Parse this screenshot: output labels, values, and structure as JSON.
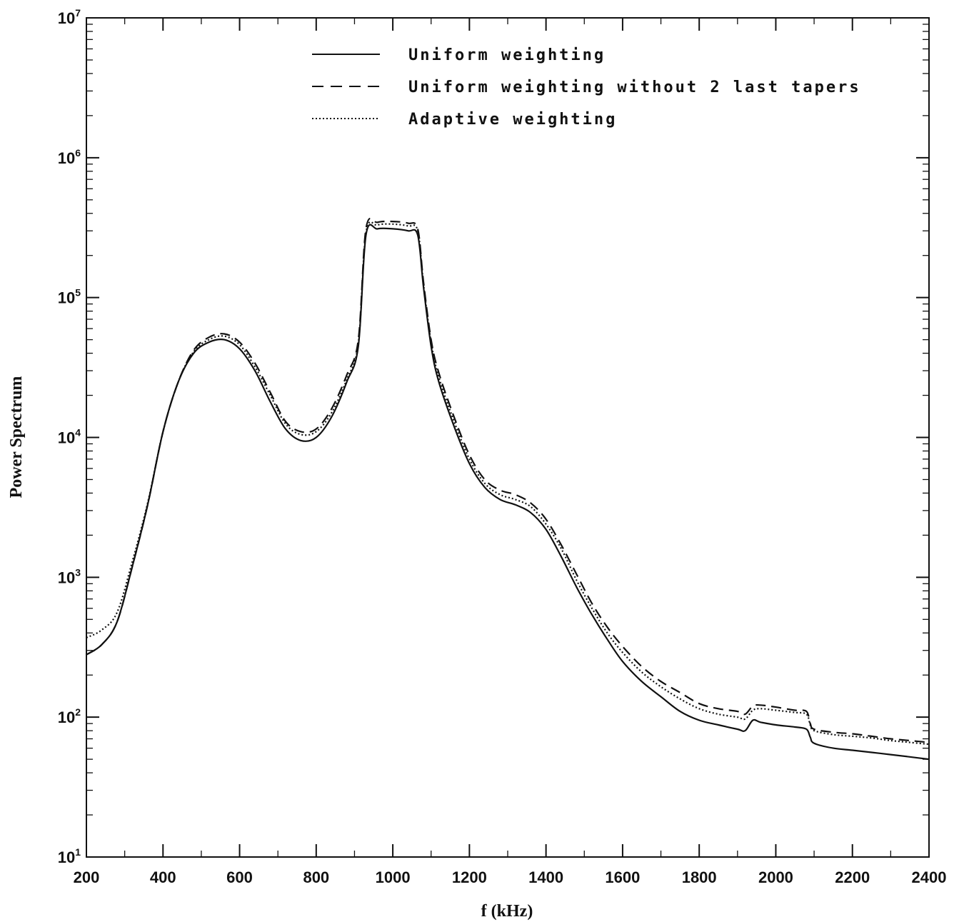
{
  "chart_data": {
    "type": "line",
    "title": "",
    "xlabel": "f (kHz)",
    "ylabel": "Power Spectrum",
    "xlim": [
      200,
      2400
    ],
    "ylim": [
      10,
      10000000
    ],
    "yscale": "log",
    "x_ticks": [
      200,
      400,
      600,
      800,
      1000,
      1200,
      1400,
      1600,
      1800,
      2000,
      2200,
      2400
    ],
    "x_tick_labels": [
      "200",
      "400",
      "600",
      "800",
      "1000",
      "1200",
      "1400",
      "1600",
      "1800",
      "2000",
      "2200",
      "2400"
    ],
    "y_ticks": [
      10,
      100,
      1000,
      10000,
      100000,
      1000000,
      10000000
    ],
    "y_tick_labels": [
      {
        "base": "10",
        "exp": "1"
      },
      {
        "base": "10",
        "exp": "2"
      },
      {
        "base": "10",
        "exp": "3"
      },
      {
        "base": "10",
        "exp": "4"
      },
      {
        "base": "10",
        "exp": "5"
      },
      {
        "base": "10",
        "exp": "6"
      },
      {
        "base": "10",
        "exp": "7"
      }
    ],
    "grid": false,
    "legend_position": "top-center",
    "x": [
      200,
      240,
      280,
      320,
      360,
      400,
      440,
      480,
      520,
      560,
      600,
      640,
      680,
      720,
      760,
      800,
      840,
      880,
      910,
      930,
      960,
      1000,
      1040,
      1065,
      1080,
      1100,
      1120,
      1160,
      1200,
      1240,
      1280,
      1320,
      1360,
      1400,
      1440,
      1480,
      1520,
      1560,
      1600,
      1650,
      1700,
      1750,
      1800,
      1850,
      1900,
      1920,
      1940,
      1960,
      2000,
      2050,
      2080,
      2090,
      2100,
      2150,
      2200,
      2250,
      2300,
      2350,
      2400
    ],
    "series": [
      {
        "name": "Uniform weighting",
        "style": "solid",
        "values": [
          280,
          330,
          480,
          1200,
          3300,
          11000,
          25000,
          40000,
          48000,
          50000,
          43000,
          30000,
          18000,
          11500,
          9500,
          10000,
          14000,
          25000,
          45000,
          280000,
          310000,
          310000,
          300000,
          280000,
          120000,
          45000,
          25000,
          12000,
          6500,
          4400,
          3600,
          3300,
          2900,
          2200,
          1400,
          850,
          540,
          360,
          250,
          180,
          140,
          110,
          95,
          88,
          82,
          80,
          95,
          92,
          88,
          85,
          82,
          72,
          65,
          60,
          58,
          56,
          54,
          52,
          50
        ]
      },
      {
        "name": "Uniform weighting without 2 last tapers",
        "style": "dashed",
        "values": [
          280,
          330,
          480,
          1200,
          3300,
          11000,
          25000,
          42000,
          52000,
          55000,
          48000,
          34000,
          21000,
          13000,
          11000,
          11500,
          16000,
          28000,
          50000,
          310000,
          345000,
          350000,
          340000,
          310000,
          130000,
          50000,
          29000,
          14000,
          7500,
          5000,
          4200,
          3900,
          3400,
          2600,
          1700,
          1050,
          650,
          440,
          320,
          230,
          180,
          150,
          125,
          115,
          110,
          105,
          120,
          122,
          118,
          112,
          110,
          90,
          82,
          78,
          76,
          73,
          70,
          68,
          66
        ]
      },
      {
        "name": "Adaptive weighting",
        "style": "dotted",
        "values": [
          370,
          420,
          560,
          1300,
          3400,
          11000,
          25000,
          41000,
          50000,
          53000,
          46000,
          32000,
          20000,
          12500,
          10500,
          11000,
          15000,
          26000,
          47000,
          290000,
          330000,
          335000,
          325000,
          300000,
          125000,
          48000,
          27000,
          13000,
          7000,
          4700,
          3900,
          3600,
          3200,
          2400,
          1600,
          950,
          600,
          400,
          290,
          210,
          165,
          135,
          115,
          105,
          100,
          97,
          112,
          115,
          112,
          108,
          105,
          88,
          80,
          75,
          73,
          71,
          68,
          66,
          64
        ]
      }
    ]
  }
}
